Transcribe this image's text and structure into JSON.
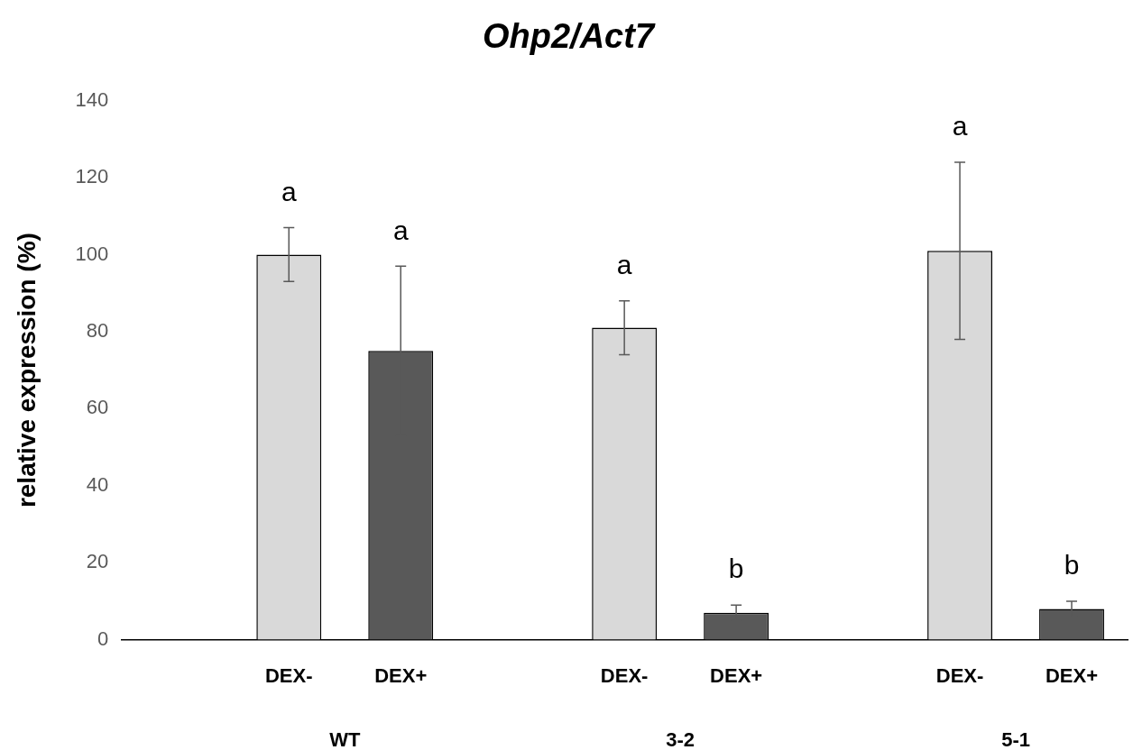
{
  "chart_data": {
    "type": "bar",
    "title": "Ohp2/Act7",
    "ylabel": "relative expression (%)",
    "categories": [
      null,
      "DEX-",
      "DEX+",
      null,
      "DEX-",
      "DEX+",
      null,
      "DEX-",
      "DEX+"
    ],
    "values": [
      null,
      100,
      75,
      null,
      81,
      7,
      null,
      101,
      8
    ],
    "errors": [
      null,
      7,
      22,
      null,
      7,
      2,
      null,
      23,
      2
    ],
    "colors": [
      "#d9d9d9",
      "#d9d9d9",
      "#595959",
      "#d9d9d9",
      "#d9d9d9",
      "#595959",
      "#d9d9d9",
      "#d9d9d9",
      "#595959"
    ],
    "annotations": [
      "a",
      "a",
      "a",
      "b",
      "a",
      "b",
      "WT",
      "3-2",
      "5-1"
    ],
    "ylim": [
      0,
      140
    ],
    "yticks": [
      0,
      20,
      40,
      60,
      80,
      100,
      120,
      140
    ],
    "grid": false,
    "legend": false
  }
}
